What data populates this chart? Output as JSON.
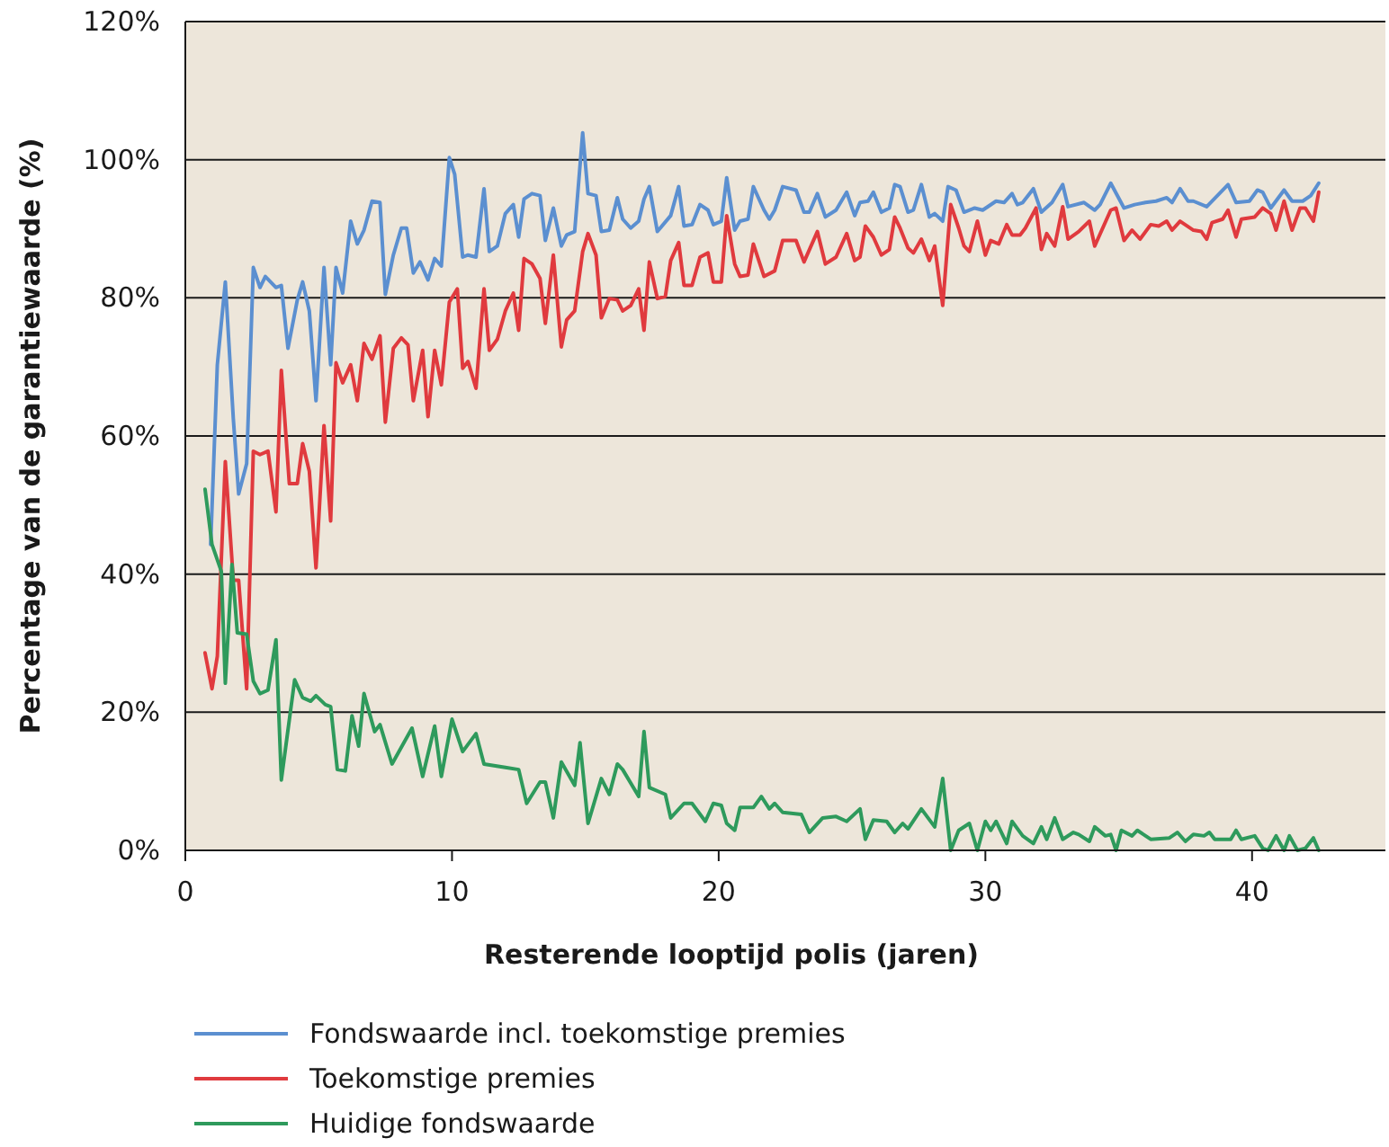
{
  "chart_data": {
    "type": "line",
    "xlabel": "Resterende looptijd polis (jaren)",
    "ylabel": "Percentage van de garantiewaarde (%)",
    "xlim": [
      0,
      45
    ],
    "xticks": [
      0,
      10,
      20,
      30,
      40
    ],
    "ylim": [
      0,
      120
    ],
    "yticks": [
      {
        "value": 0,
        "label": "0%"
      },
      {
        "value": 20,
        "label": "20%"
      },
      {
        "value": 40,
        "label": "40%"
      },
      {
        "value": 60,
        "label": "60%"
      },
      {
        "value": 80,
        "label": "80%"
      },
      {
        "value": 100,
        "label": "100%"
      },
      {
        "value": 120,
        "label": "120%"
      }
    ],
    "grid": "y",
    "legend": "bottom",
    "marker": "none",
    "line_style": "solid",
    "series": [
      {
        "name": "Fondswaarde incl. toekomstige premies",
        "color": "#5b8fd0",
        "x": [
          0.95,
          1.2,
          1.5,
          1.8,
          2.0,
          2.3,
          2.55,
          2.8,
          3.0,
          3.4,
          3.6,
          3.85,
          4.2,
          4.4,
          4.65,
          4.9,
          5.2,
          5.45,
          5.65,
          5.9,
          6.2,
          6.45,
          6.7,
          7.0,
          7.3,
          7.5,
          7.8,
          8.1,
          8.3,
          8.55,
          8.8,
          9.1,
          9.35,
          9.6,
          9.9,
          10.1,
          10.4,
          10.6,
          10.9,
          11.2,
          11.4,
          11.7,
          12.0,
          12.3,
          12.5,
          12.7,
          13.0,
          13.3,
          13.5,
          13.8,
          14.1,
          14.3,
          14.6,
          14.9,
          15.1,
          15.4,
          15.6,
          15.9,
          16.2,
          16.4,
          16.7,
          17.0,
          17.2,
          17.4,
          17.7,
          18.2,
          18.5,
          18.7,
          19.0,
          19.3,
          19.6,
          19.8,
          20.1,
          20.3,
          20.6,
          20.8,
          21.1,
          21.3,
          21.7,
          21.9,
          22.1,
          22.4,
          22.9,
          23.2,
          23.4,
          23.7,
          24.0,
          24.4,
          24.8,
          25.1,
          25.3,
          25.6,
          25.8,
          26.1,
          26.4,
          26.6,
          26.8,
          27.1,
          27.3,
          27.6,
          27.9,
          28.1,
          28.4,
          28.6,
          28.9,
          29.2,
          29.6,
          29.9,
          30.4,
          30.7,
          31.0,
          31.2,
          31.4,
          31.8,
          32.1,
          32.5,
          32.9,
          33.1,
          33.7,
          34.1,
          34.3,
          34.7,
          35.2,
          35.6,
          36.0,
          36.4,
          36.8,
          37.0,
          37.3,
          37.6,
          37.8,
          38.3,
          38.7,
          39.1,
          39.4,
          39.9,
          40.2,
          40.4,
          40.7,
          41.2,
          41.5,
          41.9,
          42.2,
          42.5
        ],
        "values": [
          44.3,
          70.3,
          82.3,
          62.5,
          51.6,
          56.0,
          84.4,
          81.5,
          83.1,
          81.5,
          81.8,
          72.7,
          79.7,
          82.3,
          78.1,
          65.1,
          84.4,
          70.3,
          84.4,
          80.7,
          91.1,
          87.8,
          89.8,
          94.0,
          93.8,
          80.5,
          86.2,
          90.1,
          90.1,
          83.6,
          85.2,
          82.6,
          85.7,
          84.6,
          100.3,
          97.9,
          85.9,
          86.2,
          85.9,
          95.8,
          86.7,
          87.5,
          92.2,
          93.5,
          88.8,
          94.3,
          95.1,
          94.8,
          88.3,
          93.0,
          87.5,
          89.1,
          89.6,
          103.9,
          95.1,
          94.8,
          89.6,
          89.8,
          94.5,
          91.4,
          90.1,
          91.1,
          94.3,
          96.1,
          89.6,
          91.9,
          96.1,
          90.4,
          90.6,
          93.5,
          92.7,
          90.6,
          91.1,
          97.4,
          89.8,
          91.1,
          91.4,
          96.1,
          92.7,
          91.4,
          92.7,
          96.1,
          95.6,
          92.4,
          92.4,
          95.1,
          91.7,
          92.7,
          95.3,
          91.9,
          93.8,
          94.0,
          95.3,
          92.4,
          93.0,
          96.4,
          96.1,
          92.4,
          92.7,
          96.4,
          91.7,
          92.2,
          91.1,
          96.1,
          95.6,
          92.4,
          93.0,
          92.7,
          94.0,
          93.8,
          95.1,
          93.5,
          93.8,
          95.8,
          92.4,
          93.8,
          96.4,
          93.2,
          93.8,
          92.7,
          93.5,
          96.6,
          93.0,
          93.5,
          93.8,
          94.0,
          94.5,
          93.8,
          95.8,
          94.0,
          94.0,
          93.2,
          94.8,
          96.4,
          93.8,
          94.0,
          95.6,
          95.3,
          93.0,
          95.6,
          94.0,
          94.0,
          94.8,
          96.6
        ]
      },
      {
        "name": "Toekomstige premies",
        "color": "#e03a3e",
        "x": [
          0.74,
          1.0,
          1.2,
          1.5,
          1.8,
          2.0,
          2.3,
          2.55,
          2.8,
          3.1,
          3.4,
          3.6,
          3.9,
          4.2,
          4.4,
          4.65,
          4.9,
          5.2,
          5.45,
          5.65,
          5.9,
          6.2,
          6.45,
          6.7,
          7.0,
          7.3,
          7.5,
          7.8,
          8.1,
          8.35,
          8.55,
          8.9,
          9.1,
          9.35,
          9.6,
          9.9,
          10.2,
          10.4,
          10.6,
          10.9,
          11.2,
          11.4,
          11.7,
          12.0,
          12.3,
          12.5,
          12.7,
          13.0,
          13.3,
          13.5,
          13.8,
          14.1,
          14.3,
          14.6,
          14.9,
          15.1,
          15.4,
          15.6,
          15.9,
          16.2,
          16.4,
          16.7,
          17.0,
          17.2,
          17.4,
          17.7,
          18.0,
          18.2,
          18.5,
          18.7,
          19.0,
          19.3,
          19.6,
          19.8,
          20.1,
          20.3,
          20.6,
          20.8,
          21.1,
          21.3,
          21.7,
          22.1,
          22.4,
          22.9,
          23.2,
          23.7,
          24.0,
          24.4,
          24.8,
          25.1,
          25.3,
          25.5,
          25.8,
          26.1,
          26.4,
          26.6,
          26.8,
          27.1,
          27.3,
          27.6,
          27.9,
          28.1,
          28.4,
          28.7,
          29.0,
          29.2,
          29.4,
          29.7,
          30.0,
          30.2,
          30.5,
          30.8,
          31.0,
          31.3,
          31.5,
          31.9,
          32.1,
          32.3,
          32.6,
          32.9,
          33.1,
          33.5,
          33.9,
          34.1,
          34.7,
          34.9,
          35.2,
          35.5,
          35.8,
          36.2,
          36.5,
          36.8,
          37.0,
          37.3,
          37.8,
          38.1,
          38.3,
          38.5,
          38.9,
          39.1,
          39.4,
          39.6,
          40.1,
          40.4,
          40.7,
          40.9,
          41.2,
          41.5,
          41.8,
          42.0,
          42.3,
          42.5
        ],
        "values": [
          28.6,
          23.4,
          28.1,
          56.3,
          39.1,
          39.1,
          23.4,
          57.8,
          57.3,
          57.8,
          49.0,
          69.5,
          53.1,
          53.1,
          58.9,
          54.9,
          40.9,
          61.5,
          47.7,
          70.6,
          67.7,
          70.3,
          65.1,
          73.4,
          71.1,
          74.5,
          62.0,
          72.7,
          74.2,
          73.2,
          65.1,
          72.4,
          62.8,
          72.4,
          67.4,
          79.4,
          81.3,
          69.8,
          70.8,
          66.9,
          81.3,
          72.4,
          74.0,
          78.1,
          80.7,
          75.3,
          85.7,
          84.9,
          82.8,
          76.3,
          86.2,
          72.9,
          76.8,
          78.1,
          86.7,
          89.3,
          86.2,
          77.1,
          79.9,
          79.7,
          78.1,
          78.9,
          81.3,
          75.3,
          85.2,
          79.9,
          80.2,
          85.4,
          88.0,
          81.8,
          81.8,
          85.9,
          86.5,
          82.3,
          82.3,
          91.9,
          84.9,
          83.1,
          83.3,
          87.8,
          83.1,
          83.9,
          88.3,
          88.3,
          85.2,
          89.6,
          84.9,
          85.9,
          89.3,
          85.4,
          85.9,
          90.4,
          88.8,
          86.2,
          87.0,
          91.7,
          90.1,
          87.2,
          86.5,
          88.5,
          85.4,
          87.5,
          78.9,
          93.5,
          90.1,
          87.5,
          86.7,
          91.1,
          86.2,
          88.3,
          87.8,
          90.6,
          89.1,
          89.1,
          90.1,
          93.0,
          87.0,
          89.3,
          87.5,
          93.2,
          88.5,
          89.6,
          91.1,
          87.5,
          92.7,
          93.0,
          88.3,
          89.8,
          88.5,
          90.6,
          90.4,
          91.1,
          89.8,
          91.1,
          89.8,
          89.6,
          88.5,
          90.9,
          91.4,
          92.7,
          88.8,
          91.4,
          91.7,
          93.0,
          92.2,
          89.8,
          94.0,
          89.8,
          93.0,
          93.0,
          91.1,
          95.3
        ]
      },
      {
        "name": "Huidige fondswaarde",
        "color": "#2e9a5c",
        "x": [
          0.74,
          1.0,
          1.35,
          1.5,
          1.75,
          1.95,
          2.3,
          2.55,
          2.8,
          3.1,
          3.4,
          3.6,
          4.1,
          4.4,
          4.7,
          4.9,
          5.25,
          5.45,
          5.7,
          6.0,
          6.25,
          6.5,
          6.7,
          7.1,
          7.3,
          7.75,
          8.5,
          8.9,
          9.35,
          9.6,
          10.0,
          10.4,
          10.9,
          11.2,
          12.0,
          12.5,
          12.8,
          13.3,
          13.5,
          13.8,
          14.1,
          14.6,
          14.8,
          15.1,
          15.6,
          15.9,
          16.2,
          16.4,
          17.0,
          17.2,
          17.4,
          18.0,
          18.2,
          18.7,
          19.0,
          19.5,
          19.8,
          20.1,
          20.3,
          20.6,
          20.8,
          21.3,
          21.6,
          21.9,
          22.1,
          22.4,
          23.1,
          23.4,
          23.9,
          24.4,
          24.8,
          25.3,
          25.5,
          25.8,
          26.3,
          26.6,
          26.9,
          27.1,
          27.6,
          28.1,
          28.4,
          28.7,
          29.0,
          29.4,
          29.7,
          30.0,
          30.2,
          30.4,
          30.8,
          31.0,
          31.4,
          31.8,
          32.1,
          32.3,
          32.6,
          32.9,
          33.3,
          33.5,
          33.9,
          34.1,
          34.5,
          34.7,
          34.9,
          35.1,
          35.5,
          35.7,
          36.2,
          36.9,
          37.2,
          37.5,
          37.8,
          38.2,
          38.4,
          38.6,
          39.2,
          39.4,
          39.6,
          40.1,
          40.4,
          40.6,
          40.9,
          41.2,
          41.4,
          41.7,
          42.0,
          42.3,
          42.5
        ],
        "values": [
          52.3,
          44.3,
          40.4,
          24.2,
          41.4,
          31.5,
          31.3,
          24.5,
          22.7,
          23.2,
          30.5,
          10.2,
          24.7,
          22.1,
          21.6,
          22.4,
          21.1,
          20.8,
          11.7,
          11.5,
          19.5,
          15.1,
          22.7,
          17.2,
          18.2,
          12.5,
          17.7,
          10.7,
          18.0,
          10.7,
          19.0,
          14.3,
          16.9,
          12.5,
          12.0,
          11.7,
          6.8,
          9.9,
          9.9,
          4.7,
          12.8,
          9.4,
          15.6,
          3.9,
          10.4,
          8.1,
          12.5,
          11.7,
          7.8,
          17.2,
          9.1,
          8.1,
          4.7,
          6.8,
          6.8,
          4.2,
          6.8,
          6.5,
          3.9,
          2.9,
          6.2,
          6.2,
          7.8,
          6.0,
          6.8,
          5.5,
          5.2,
          2.6,
          4.7,
          4.9,
          4.2,
          6.0,
          1.6,
          4.4,
          4.2,
          2.6,
          3.9,
          3.1,
          6.0,
          3.4,
          10.4,
          0,
          2.9,
          3.9,
          0,
          4.2,
          2.9,
          4.2,
          1.0,
          4.2,
          2.1,
          1.0,
          3.4,
          1.6,
          4.7,
          1.6,
          2.6,
          2.3,
          1.3,
          3.4,
          2.1,
          2.3,
          0,
          2.9,
          2.1,
          2.9,
          1.6,
          1.8,
          2.6,
          1.3,
          2.3,
          2.1,
          2.6,
          1.6,
          1.6,
          2.9,
          1.6,
          2.1,
          0.3,
          0,
          2.1,
          0,
          2.1,
          0,
          0.3,
          1.8,
          0
        ]
      }
    ]
  }
}
